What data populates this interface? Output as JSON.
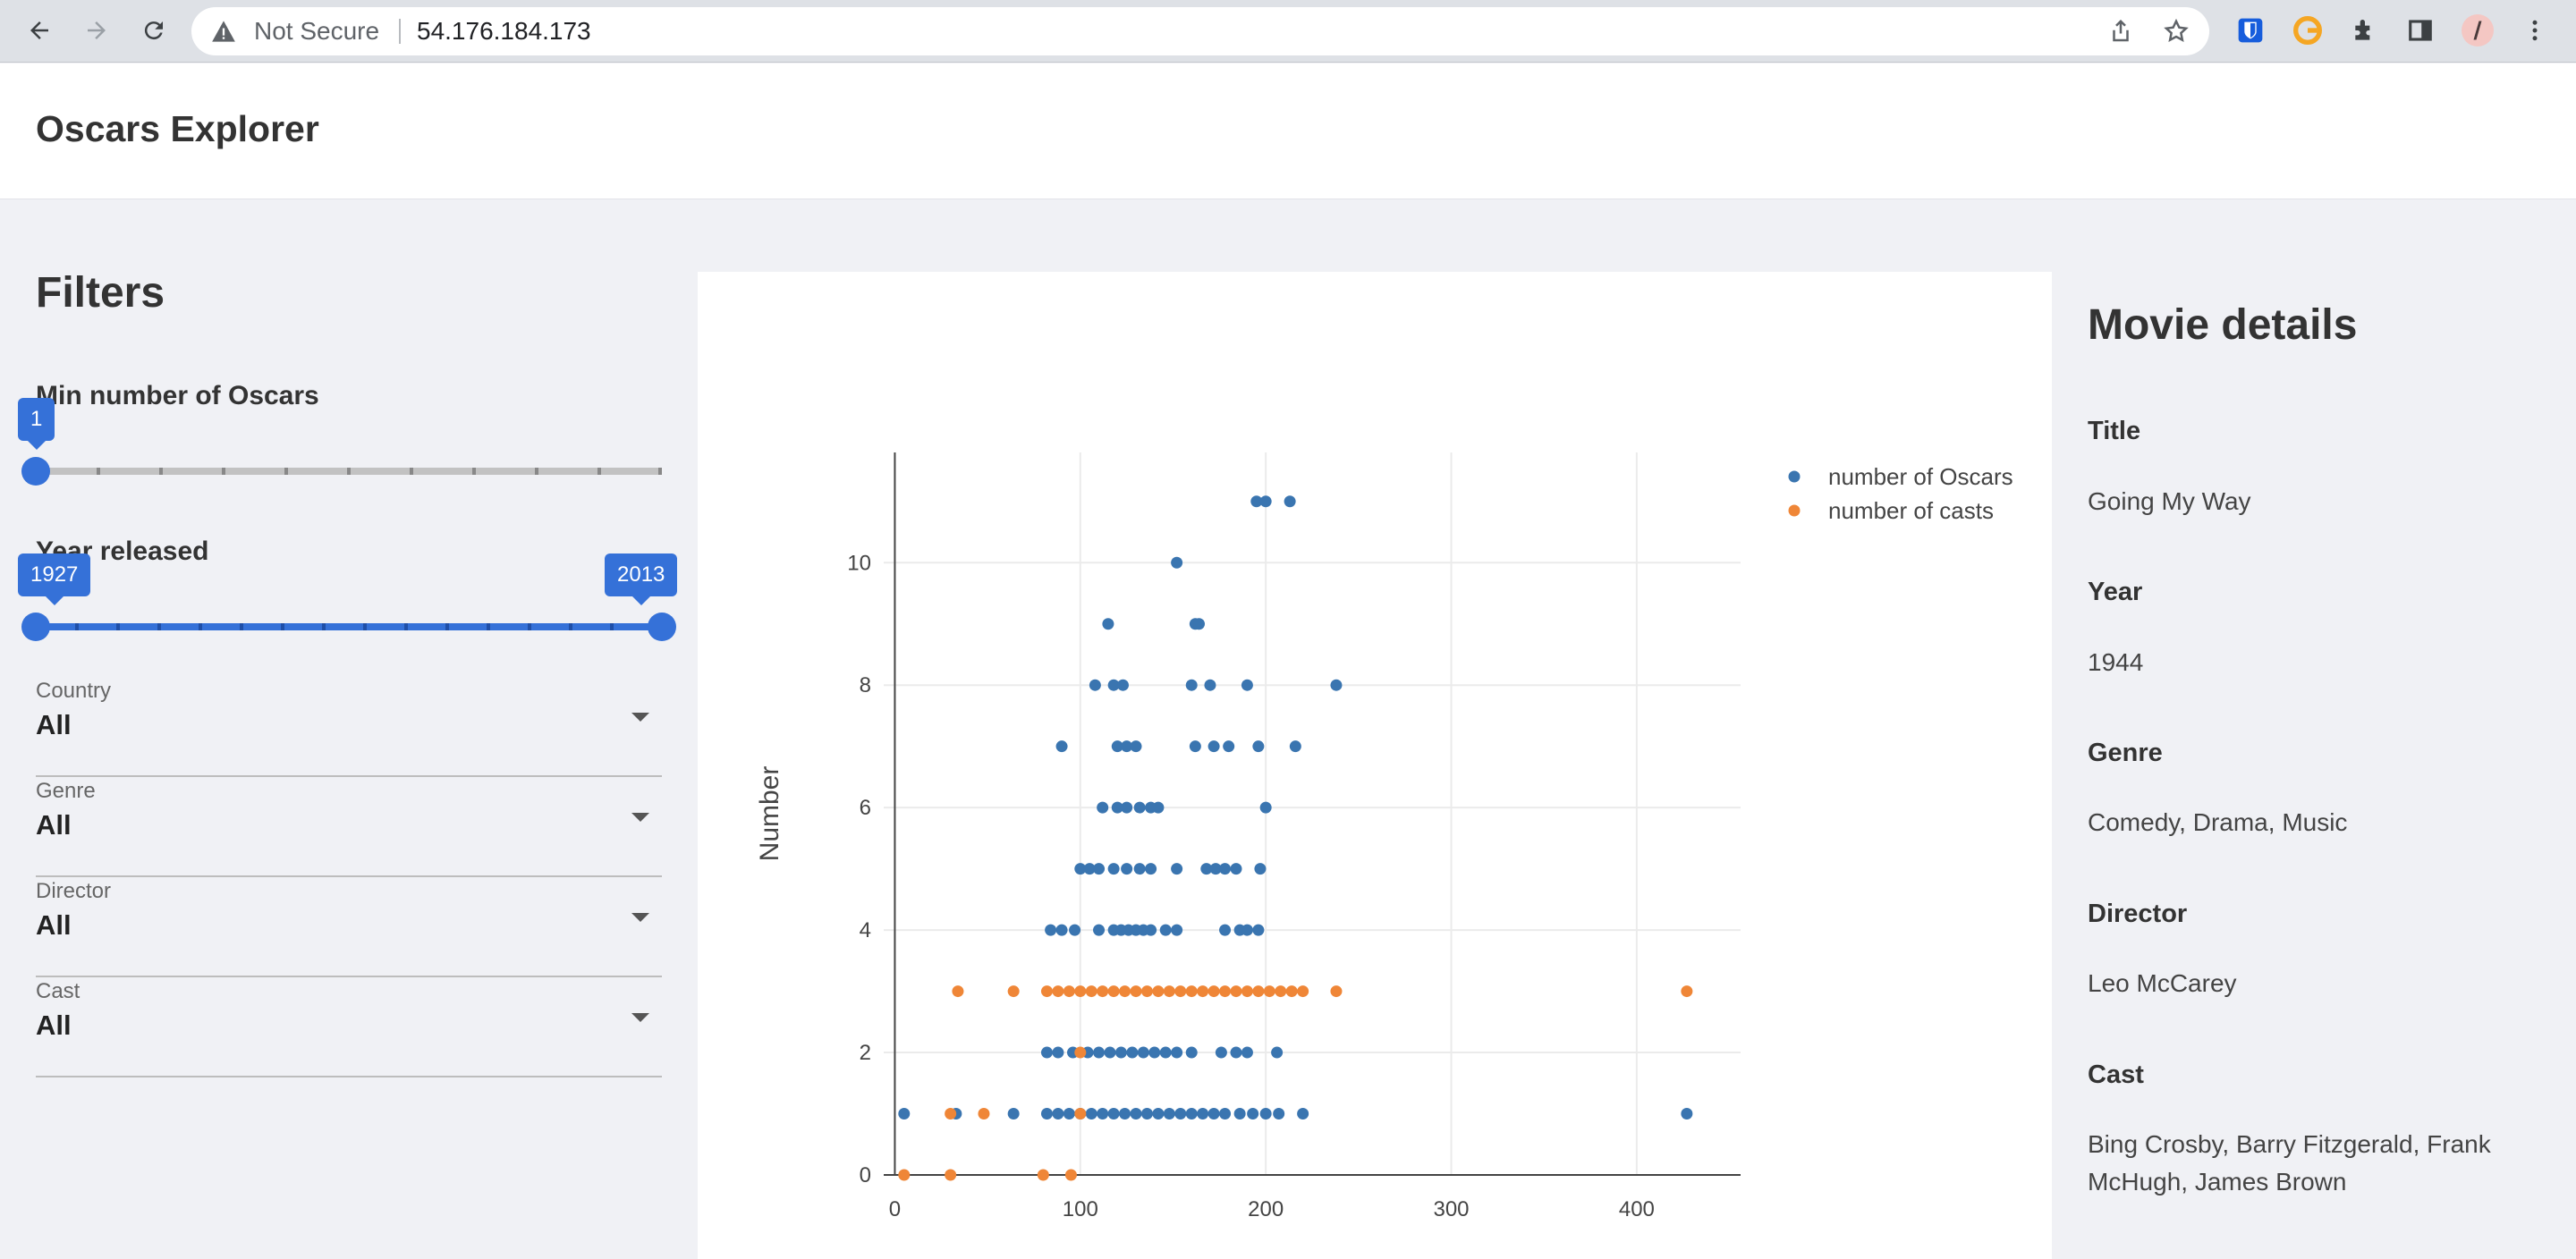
{
  "browser": {
    "security_label": "Not Secure",
    "url": "54.176.184.173"
  },
  "app": {
    "title": "Oscars Explorer"
  },
  "filters": {
    "title": "Filters",
    "min_oscars": {
      "label": "Min number of Oscars",
      "value": "1",
      "min": 1,
      "max": 11
    },
    "year_released": {
      "label": "Year released",
      "start": "1927",
      "end": "2013",
      "min": 1927,
      "max": 2013
    },
    "dropdowns": [
      {
        "label": "Country",
        "value": "All"
      },
      {
        "label": "Genre",
        "value": "All"
      },
      {
        "label": "Director",
        "value": "All"
      },
      {
        "label": "Cast",
        "value": "All"
      }
    ]
  },
  "details": {
    "title": "Movie details",
    "fields": [
      {
        "label": "Title",
        "value": "Going My Way"
      },
      {
        "label": "Year",
        "value": "1944"
      },
      {
        "label": "Genre",
        "value": "Comedy, Drama, Music"
      },
      {
        "label": "Director",
        "value": "Leo McCarey"
      },
      {
        "label": "Cast",
        "value": "Bing Crosby, Barry Fitzgerald, Frank McHugh, James Brown"
      }
    ]
  },
  "chart_data": {
    "type": "scatter",
    "title": "",
    "xlabel": "",
    "ylabel": "Number",
    "xlim": [
      -6,
      456
    ],
    "ylim": [
      0,
      11.8
    ],
    "x_ticks": [
      0,
      100,
      200,
      300,
      400
    ],
    "y_ticks": [
      0,
      2,
      4,
      6,
      8,
      10
    ],
    "grid": true,
    "legend_position": "top-right",
    "series": [
      {
        "name": "number of Oscars",
        "color": "#3a75b0",
        "points": [
          [
            195,
            11
          ],
          [
            200,
            11
          ],
          [
            213,
            11
          ],
          [
            152,
            10
          ],
          [
            115,
            9
          ],
          [
            162,
            9
          ],
          [
            164,
            9
          ],
          [
            108,
            8
          ],
          [
            118,
            8
          ],
          [
            123,
            8
          ],
          [
            160,
            8
          ],
          [
            170,
            8
          ],
          [
            190,
            8
          ],
          [
            238,
            8
          ],
          [
            90,
            7
          ],
          [
            120,
            7
          ],
          [
            125,
            7
          ],
          [
            130,
            7
          ],
          [
            162,
            7
          ],
          [
            172,
            7
          ],
          [
            180,
            7
          ],
          [
            196,
            7
          ],
          [
            216,
            7
          ],
          [
            112,
            6
          ],
          [
            120,
            6
          ],
          [
            125,
            6
          ],
          [
            132,
            6
          ],
          [
            138,
            6
          ],
          [
            142,
            6
          ],
          [
            200,
            6
          ],
          [
            100,
            5
          ],
          [
            105,
            5
          ],
          [
            110,
            5
          ],
          [
            118,
            5
          ],
          [
            125,
            5
          ],
          [
            132,
            5
          ],
          [
            138,
            5
          ],
          [
            152,
            5
          ],
          [
            168,
            5
          ],
          [
            173,
            5
          ],
          [
            178,
            5
          ],
          [
            184,
            5
          ],
          [
            197,
            5
          ],
          [
            84,
            4
          ],
          [
            90,
            4
          ],
          [
            97,
            4
          ],
          [
            110,
            4
          ],
          [
            118,
            4
          ],
          [
            122,
            4
          ],
          [
            126,
            4
          ],
          [
            130,
            4
          ],
          [
            134,
            4
          ],
          [
            138,
            4
          ],
          [
            146,
            4
          ],
          [
            152,
            4
          ],
          [
            178,
            4
          ],
          [
            186,
            4
          ],
          [
            190,
            4
          ],
          [
            196,
            4
          ],
          [
            82,
            2
          ],
          [
            88,
            2
          ],
          [
            96,
            2
          ],
          [
            104,
            2
          ],
          [
            110,
            2
          ],
          [
            116,
            2
          ],
          [
            122,
            2
          ],
          [
            128,
            2
          ],
          [
            134,
            2
          ],
          [
            140,
            2
          ],
          [
            146,
            2
          ],
          [
            152,
            2
          ],
          [
            160,
            2
          ],
          [
            176,
            2
          ],
          [
            184,
            2
          ],
          [
            190,
            2
          ],
          [
            206,
            2
          ],
          [
            5,
            1
          ],
          [
            33,
            1
          ],
          [
            64,
            1
          ],
          [
            82,
            1
          ],
          [
            88,
            1
          ],
          [
            94,
            1
          ],
          [
            100,
            1
          ],
          [
            106,
            1
          ],
          [
            112,
            1
          ],
          [
            118,
            1
          ],
          [
            124,
            1
          ],
          [
            130,
            1
          ],
          [
            136,
            1
          ],
          [
            142,
            1
          ],
          [
            148,
            1
          ],
          [
            154,
            1
          ],
          [
            160,
            1
          ],
          [
            166,
            1
          ],
          [
            172,
            1
          ],
          [
            178,
            1
          ],
          [
            186,
            1
          ],
          [
            193,
            1
          ],
          [
            200,
            1
          ],
          [
            207,
            1
          ],
          [
            220,
            1
          ],
          [
            427,
            1
          ]
        ]
      },
      {
        "name": "number of casts",
        "color": "#ef8637",
        "points": [
          [
            34,
            3
          ],
          [
            64,
            3
          ],
          [
            82,
            3
          ],
          [
            88,
            3
          ],
          [
            94,
            3
          ],
          [
            100,
            3
          ],
          [
            106,
            3
          ],
          [
            112,
            3
          ],
          [
            118,
            3
          ],
          [
            124,
            3
          ],
          [
            130,
            3
          ],
          [
            136,
            3
          ],
          [
            142,
            3
          ],
          [
            148,
            3
          ],
          [
            154,
            3
          ],
          [
            160,
            3
          ],
          [
            166,
            3
          ],
          [
            172,
            3
          ],
          [
            178,
            3
          ],
          [
            184,
            3
          ],
          [
            190,
            3
          ],
          [
            196,
            3
          ],
          [
            202,
            3
          ],
          [
            208,
            3
          ],
          [
            214,
            3
          ],
          [
            220,
            3
          ],
          [
            238,
            3
          ],
          [
            427,
            3
          ],
          [
            100,
            2
          ],
          [
            30,
            1
          ],
          [
            48,
            1
          ],
          [
            100,
            1
          ],
          [
            5,
            0
          ],
          [
            30,
            0
          ],
          [
            80,
            0
          ],
          [
            95,
            0
          ]
        ]
      }
    ]
  }
}
